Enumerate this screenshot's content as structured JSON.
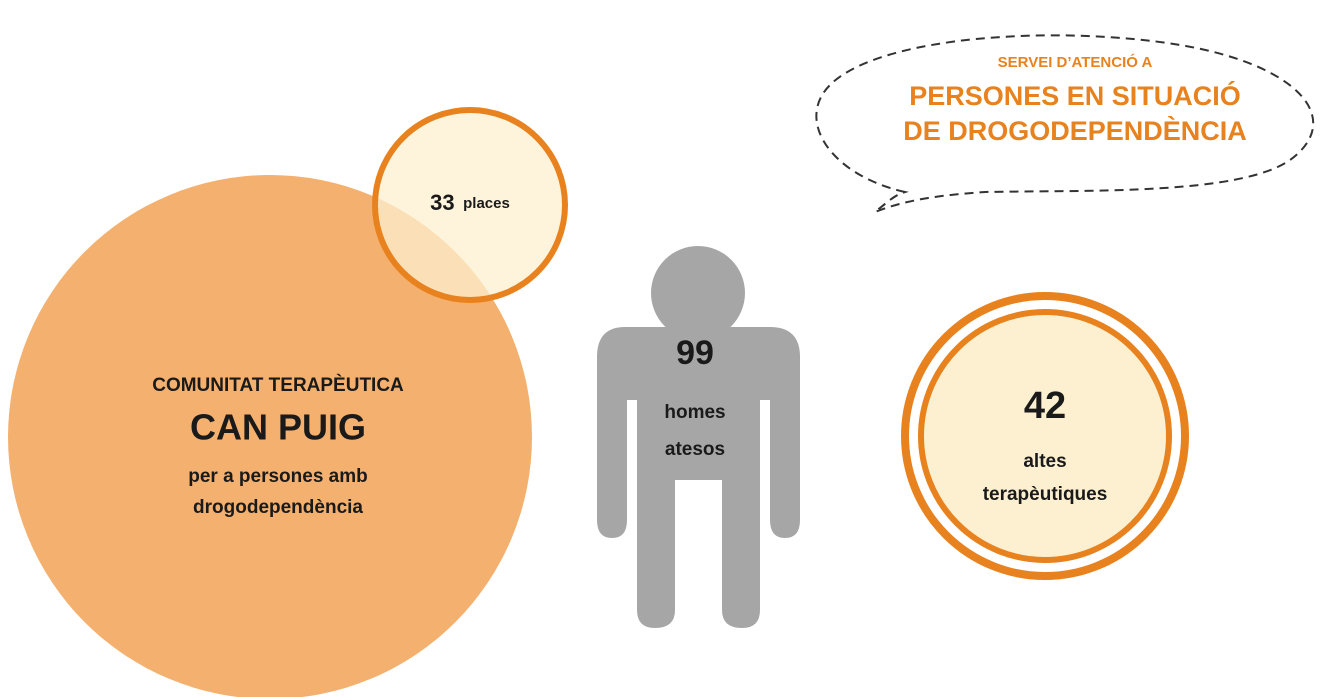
{
  "bubble": {
    "line1": "SERVEI D’ATENCIÓ  A",
    "line2": "PERSONES EN SITUACIÓ",
    "line3": "DE DROGODEPENDÈNCIA"
  },
  "community": {
    "line1": "COMUNITAT TERAPÈUTICA",
    "name": "CAN PUIG",
    "line3": "per a persones amb",
    "line4": "drogodependència"
  },
  "places": {
    "number": "33",
    "label": "places"
  },
  "men": {
    "number": "99",
    "line1": "homes",
    "line2": "atesos"
  },
  "discharges": {
    "number": "42",
    "line1": "altes",
    "line2": "terapèutiques"
  }
}
